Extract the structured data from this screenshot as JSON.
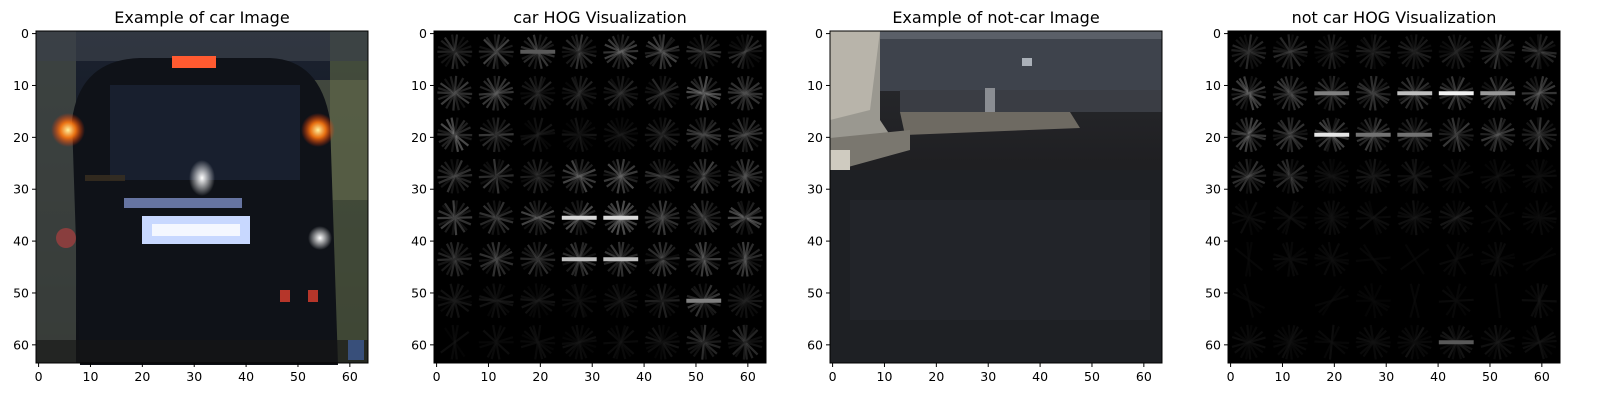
{
  "chart_data": [
    {
      "type": "image",
      "title": "Example of car Image",
      "image_size": [
        64,
        64
      ],
      "xticks": [
        0,
        10,
        20,
        30,
        40,
        50,
        60
      ],
      "yticks": [
        0,
        10,
        20,
        30,
        40,
        50,
        60
      ],
      "xlim": [
        -0.5,
        63.5
      ],
      "ylim": [
        63.5,
        -0.5
      ]
    },
    {
      "type": "image",
      "title": "car HOG Visualization",
      "image_size": [
        64,
        64
      ],
      "xticks": [
        0,
        10,
        20,
        30,
        40,
        50,
        60
      ],
      "yticks": [
        0,
        10,
        20,
        30,
        40,
        50,
        60
      ],
      "xlim": [
        -0.5,
        63.5
      ],
      "ylim": [
        63.5,
        -0.5
      ]
    },
    {
      "type": "image",
      "title": "Example of not-car Image",
      "image_size": [
        64,
        64
      ],
      "xticks": [
        0,
        10,
        20,
        30,
        40,
        50,
        60
      ],
      "yticks": [
        0,
        10,
        20,
        30,
        40,
        50,
        60
      ],
      "xlim": [
        -0.5,
        63.5
      ],
      "ylim": [
        63.5,
        -0.5
      ]
    },
    {
      "type": "image",
      "title": "not car HOG Visualization",
      "image_size": [
        64,
        64
      ],
      "xticks": [
        0,
        10,
        20,
        30,
        40,
        50,
        60
      ],
      "yticks": [
        0,
        10,
        20,
        30,
        40,
        50,
        60
      ],
      "xlim": [
        -0.5,
        63.5
      ],
      "ylim": [
        63.5,
        -0.5
      ]
    }
  ]
}
